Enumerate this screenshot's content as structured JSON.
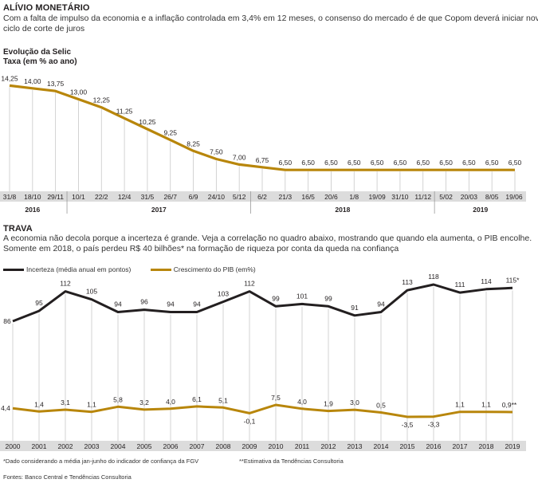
{
  "header": {
    "title": "ALÍVIO MONETÁRIO",
    "lead_line1": "Com a falta de impulso da economia e a inflação controlada em 3,4% em 12 meses, o consenso do mercado é de que Copom deverá iniciar novo",
    "lead_line2": "ciclo de corte de juros"
  },
  "colors": {
    "gold": "#b8860b",
    "black": "#231f20",
    "axis_band": "#dcdcdc",
    "grid": "#c8c8c8"
  },
  "chart_data": [
    {
      "type": "line",
      "title": "Evolução da Selic",
      "subtitle": "Taxa (em % ao ano)",
      "x": [
        "31/8",
        "18/10",
        "29/11",
        "10/1",
        "22/2",
        "12/4",
        "31/5",
        "26/7",
        "6/9",
        "24/10",
        "5/12",
        "6/2",
        "21/3",
        "16/5",
        "20/6",
        "1/8",
        "19/09",
        "31/10",
        "11/12",
        "5/02",
        "20/03",
        "8/05",
        "19/06"
      ],
      "labels": [
        "14,25",
        "14,00",
        "13,75",
        "13,00",
        "12,25",
        "11,25",
        "10,25",
        "9,25",
        "8,25",
        "7,50",
        "7,00",
        "6,75",
        "6,50",
        "6,50",
        "6,50",
        "6,50",
        "6,50",
        "6,50",
        "6,50",
        "6,50",
        "6,50",
        "6,50",
        "6,50"
      ],
      "values": [
        14.25,
        14.0,
        13.75,
        13.0,
        12.25,
        11.25,
        10.25,
        9.25,
        8.25,
        7.5,
        7.0,
        6.75,
        6.5,
        6.5,
        6.5,
        6.5,
        6.5,
        6.5,
        6.5,
        6.5,
        6.5,
        6.5,
        6.5
      ],
      "years": [
        {
          "label": "2016",
          "span": [
            0,
            2
          ]
        },
        {
          "label": "2017",
          "span": [
            3,
            10
          ]
        },
        {
          "label": "2018",
          "span": [
            11,
            18
          ]
        },
        {
          "label": "2019",
          "span": [
            19,
            22
          ]
        }
      ],
      "ylim": [
        6,
        14.5
      ]
    },
    {
      "type": "line",
      "title": "TRAVA",
      "description_line1": "A economia não decola porque a incerteza é grande. Veja a correlação no quadro abaixo, mostrando que quando ela aumenta, o PIB encolhe.",
      "description_line2": "Somente em 2018, o país perdeu R$ 40 bilhões* na formação de riqueza por conta da queda na confiança",
      "categories": [
        "2000",
        "2001",
        "2002",
        "2003",
        "2004",
        "2005",
        "2006",
        "2007",
        "2008",
        "2009",
        "2010",
        "2011",
        "2012",
        "2013",
        "2014",
        "2015",
        "2016",
        "2017",
        "2018",
        "2019"
      ],
      "series": [
        {
          "name": "Incerteza (média anual em pontos)",
          "color": "#231f20",
          "values": [
            86,
            95,
            112,
            105,
            94,
            96,
            94,
            94,
            103,
            112,
            99,
            101,
            99,
            91,
            94,
            113,
            118,
            111,
            114,
            115
          ],
          "labels": [
            "86",
            "95",
            "112",
            "105",
            "94",
            "96",
            "94",
            "94",
            "103",
            "112",
            "99",
            "101",
            "99",
            "91",
            "94",
            "113",
            "118",
            "111",
            "114",
            "115*"
          ],
          "ylim": [
            80,
            125
          ]
        },
        {
          "name": "Crescimento do PIB (em%)",
          "color": "#b8860b",
          "values": [
            4.4,
            1.4,
            3.1,
            1.1,
            5.8,
            3.2,
            4.0,
            6.1,
            5.1,
            -0.1,
            7.5,
            4.0,
            1.9,
            3.0,
            0.5,
            -3.5,
            -3.3,
            1.1,
            1.1,
            0.9
          ],
          "labels": [
            "4,4",
            "1,4",
            "3,1",
            "1,1",
            "5,8",
            "3,2",
            "4,0",
            "6,1",
            "5,1",
            "-0,1",
            "7,5",
            "4,0",
            "1,9",
            "3,0",
            "0,5",
            "-3,5",
            "-3,3",
            "1,1",
            "1,1",
            "0,9**"
          ]
        }
      ]
    }
  ],
  "footnotes": {
    "note1": "*Dado considerando a média jan-junho do indicador de confiança da FGV",
    "note2": "**Estimativa da Tendências Consultoria",
    "sources": "Fontes: Banco Central e Tendências Consultoria"
  }
}
